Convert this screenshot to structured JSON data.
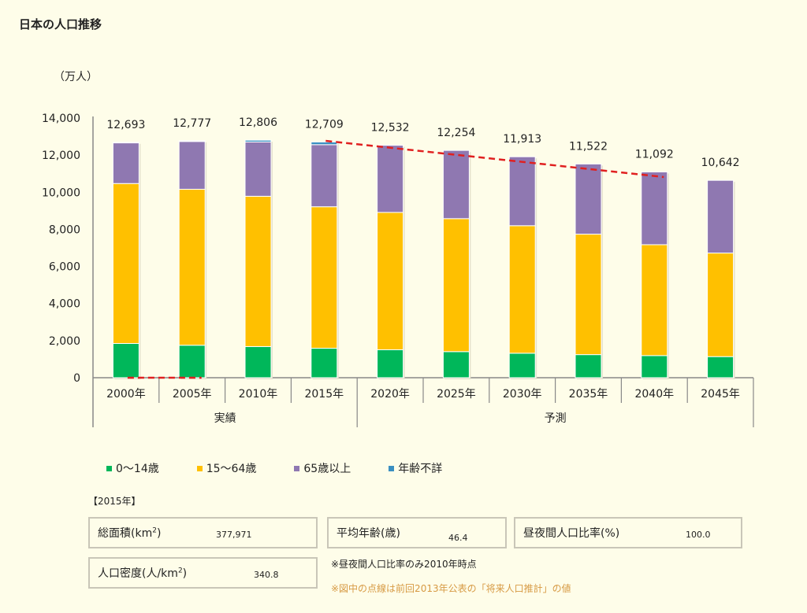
{
  "title": "日本の人口推移",
  "unit_label": "（万人）",
  "chart_data": {
    "type": "bar",
    "stacked": true,
    "title": "日本の人口推移",
    "ylabel": "（万人）",
    "xlabel": "",
    "ylim": [
      0,
      14000
    ],
    "yticks": [
      0,
      2000,
      4000,
      6000,
      8000,
      10000,
      12000,
      14000
    ],
    "ytick_labels": [
      "0",
      "2,000",
      "4,000",
      "6,000",
      "8,000",
      "10,000",
      "12,000",
      "14,000"
    ],
    "grid": false,
    "categories": [
      "2000年",
      "2005年",
      "2010年",
      "2015年",
      "2020年",
      "2025年",
      "2030年",
      "2035年",
      "2040年",
      "2045年"
    ],
    "groups": [
      {
        "label": "実績",
        "from": 0,
        "to": 3
      },
      {
        "label": "予測",
        "from": 4,
        "to": 9
      }
    ],
    "series": [
      {
        "name": "0〜14歳",
        "color": "#00b75a",
        "values": [
          1847,
          1752,
          1680,
          1589,
          1507,
          1407,
          1321,
          1246,
          1194,
          1138
        ]
      },
      {
        "name": "15〜64歳",
        "color": "#ffc000",
        "values": [
          8622,
          8409,
          8103,
          7629,
          7406,
          7170,
          6875,
          6494,
          5978,
          5584
        ]
      },
      {
        "name": "65歳以上",
        "color": "#8f78b1",
        "values": [
          2204,
          2576,
          2925,
          3347,
          3619,
          3677,
          3716,
          3782,
          3921,
          3919
        ]
      },
      {
        "name": "年齢不詳",
        "color": "#3a8fc1",
        "values": [
          20,
          40,
          98,
          144,
          0,
          0,
          0,
          0,
          0,
          0
        ]
      }
    ],
    "totals": [
      12693,
      12777,
      12806,
      12709,
      12532,
      12254,
      11913,
      11522,
      11092,
      10642
    ],
    "total_labels": [
      "12,693",
      "12,777",
      "12,806",
      "12,709",
      "12,532",
      "12,254",
      "11,913",
      "11,522",
      "11,092",
      "10,642"
    ],
    "dashed_line": {
      "name": "前回2013年公表の「将来人口推計」",
      "color": "#e02020",
      "segments": [
        {
          "x_from": 0,
          "x_to": 1,
          "y_from": 0,
          "y_to": 0
        },
        {
          "x_from": 3,
          "x_to": 8,
          "y_from": 12770,
          "y_to": 10820
        }
      ]
    },
    "legend_position": "bottom"
  },
  "info": {
    "year_label": "【2015年】",
    "area_label": "総面積(km",
    "area_sup": "2",
    "area_close": ")",
    "area_value": "377,971",
    "density_label": "人口密度(人/km",
    "density_sup": "2",
    "density_close": ")",
    "density_value": "340.8",
    "age_label": "平均年齢(歳)",
    "age_value": "46.4",
    "ratio_label": "昼夜間人口比率(%)",
    "ratio_value": "100.0",
    "note_ratio": "※昼夜間人口比率のみ2010年時点",
    "note_dashed": "※図中の点線は前回2013年公表の「将来人口推計」の値"
  }
}
